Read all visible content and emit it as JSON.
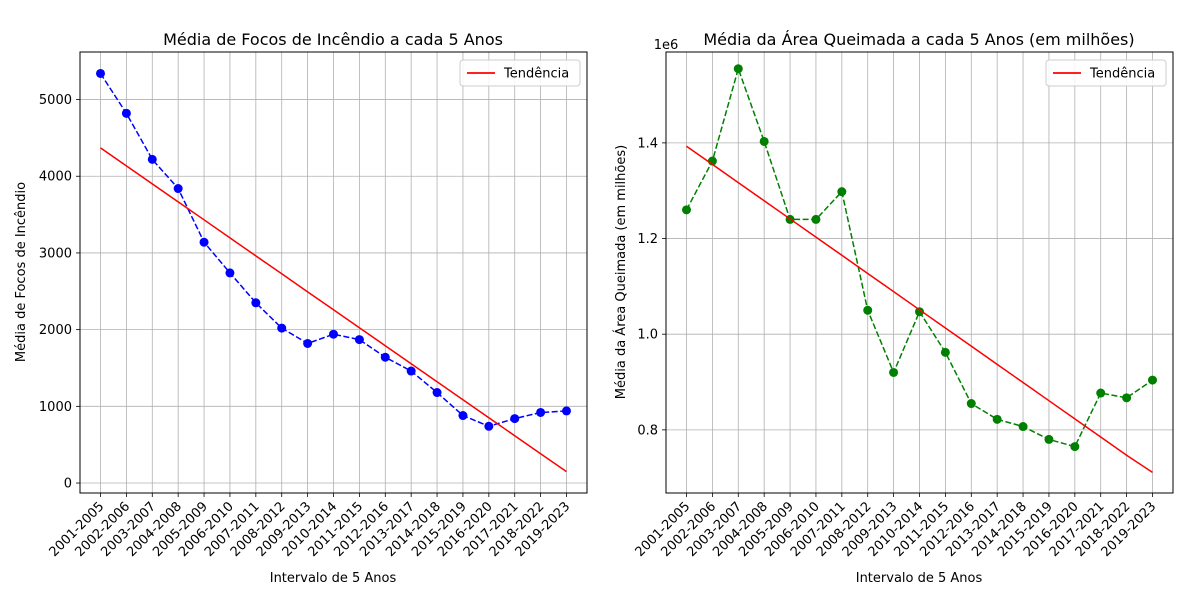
{
  "chart_data": [
    {
      "type": "line",
      "title": "Média de Focos de Incêndio a cada 5 Anos",
      "xlabel": "Intervalo de 5 Anos",
      "ylabel": "Média de Focos de Incêndio",
      "categories": [
        "2001-2005",
        "2002-2006",
        "2003-2007",
        "2004-2008",
        "2005-2009",
        "2006-2010",
        "2007-2011",
        "2008-2012",
        "2009-2013",
        "2010-2014",
        "2011-2015",
        "2012-2016",
        "2013-2017",
        "2014-2018",
        "2015-2019",
        "2016-2020",
        "2017-2021",
        "2018-2022",
        "2019-2023"
      ],
      "ylim": [
        -130,
        5620
      ],
      "yticks": [
        0,
        1000,
        2000,
        3000,
        4000,
        5000
      ],
      "ytick_labels": [
        "0",
        "1000",
        "2000",
        "3000",
        "4000",
        "5000"
      ],
      "offset_label": "",
      "grid": true,
      "legend_position": "top-right",
      "series": [
        {
          "values": [
            5340,
            4820,
            4220,
            3840,
            3140,
            2740,
            2350,
            2020,
            1820,
            1940,
            1870,
            1640,
            1460,
            1180,
            880,
            740,
            840,
            920,
            940
          ],
          "color": "#0000ff",
          "style": "dashed",
          "marker": "circle"
        },
        {
          "name": "Tendência",
          "values": [
            4370,
            4135,
            3901,
            3666,
            3432,
            3197,
            2962,
            2728,
            2493,
            2259,
            2024,
            1790,
            1555,
            1320,
            1086,
            851,
            617,
            382,
            148
          ],
          "color": "#ff0000",
          "style": "solid",
          "marker": "none"
        }
      ]
    },
    {
      "type": "line",
      "title": "Média da Área Queimada a cada 5 Anos (em milhões)",
      "xlabel": "Intervalo de 5 Anos",
      "ylabel": "Média da Área Queimada (em milhões)",
      "categories": [
        "2001-2005",
        "2002-2006",
        "2003-2007",
        "2004-2008",
        "2005-2009",
        "2006-2010",
        "2007-2011",
        "2008-2012",
        "2009-2013",
        "2010-2014",
        "2011-2015",
        "2012-2016",
        "2013-2017",
        "2014-2018",
        "2015-2019",
        "2016-2020",
        "2017-2021",
        "2018-2022",
        "2019-2023"
      ],
      "ylim": [
        0.668,
        1.59
      ],
      "yticks": [
        0.8,
        1.0,
        1.2,
        1.4
      ],
      "ytick_labels": [
        "0.8",
        "1.0",
        "1.2",
        "1.4"
      ],
      "offset_label": "1e6",
      "grid": true,
      "legend_position": "top-right",
      "series": [
        {
          "values": [
            1.26,
            1.362,
            1.555,
            1.403,
            1.24,
            1.24,
            1.298,
            1.05,
            0.92,
            1.047,
            0.962,
            0.855,
            0.822,
            0.807,
            0.78,
            0.765,
            0.877,
            0.867,
            0.904
          ],
          "color": "#008000",
          "style": "dashed",
          "marker": "circle"
        },
        {
          "name": "Tendência",
          "values": [
            1.393,
            1.355,
            1.317,
            1.279,
            1.241,
            1.203,
            1.165,
            1.127,
            1.089,
            1.051,
            1.013,
            0.975,
            0.937,
            0.899,
            0.861,
            0.823,
            0.785,
            0.747,
            0.711
          ],
          "color": "#ff0000",
          "style": "solid",
          "marker": "none"
        }
      ]
    }
  ]
}
